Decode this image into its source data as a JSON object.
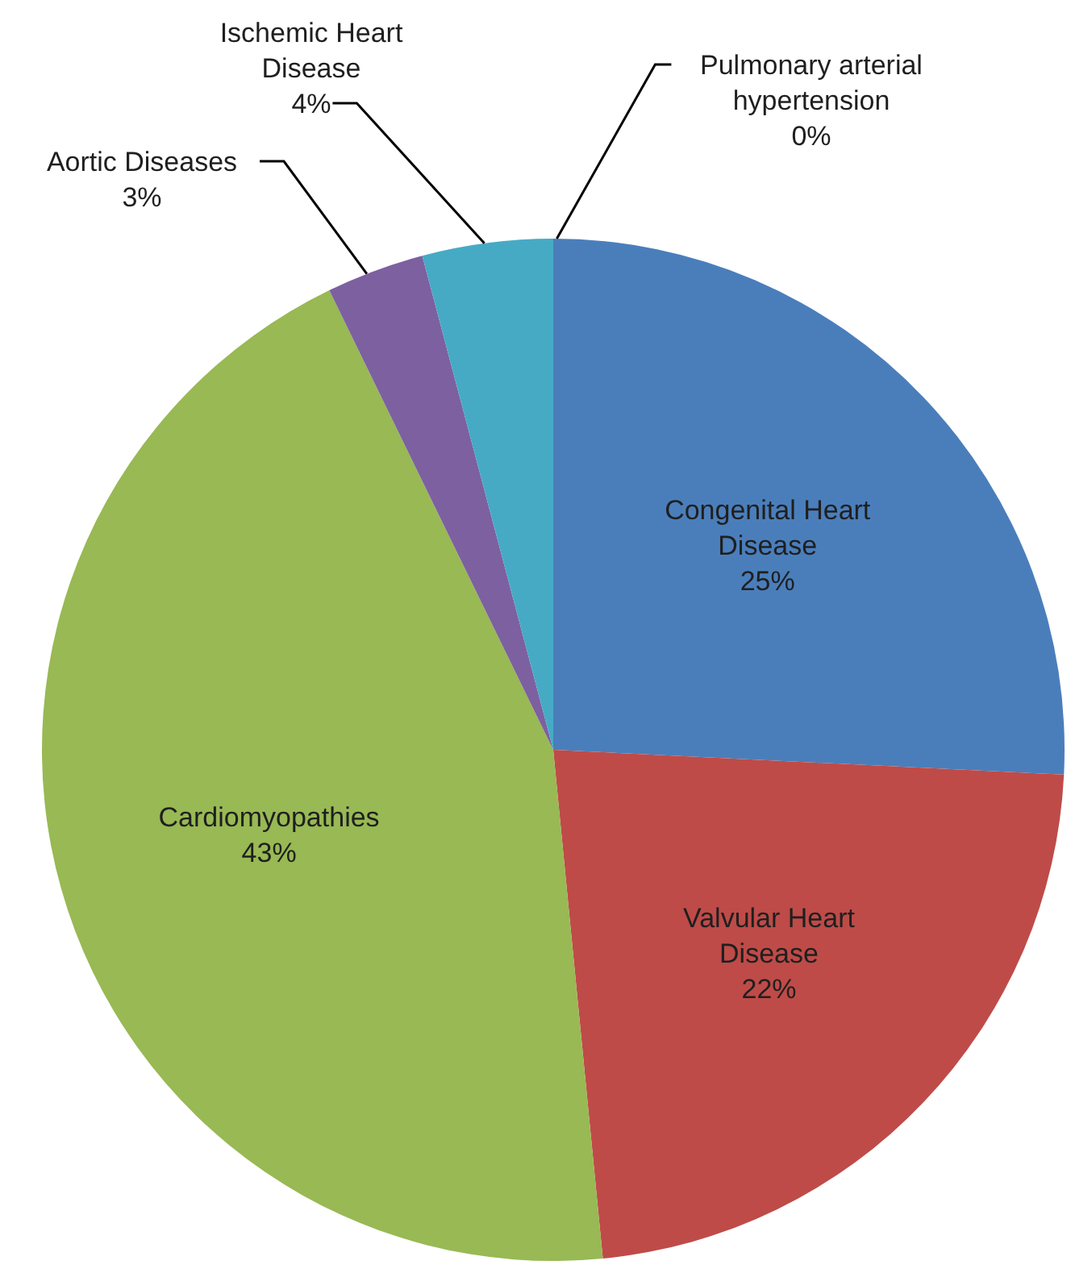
{
  "chart_data": {
    "type": "pie",
    "categories": [
      "Congenital Heart Disease",
      "Valvular Heart Disease",
      "Cardiomyopathies",
      "Aortic Diseases",
      "Ischemic Heart Disease",
      "Pulmonary arterial hypertension"
    ],
    "values": [
      25,
      22,
      43,
      3,
      4,
      0
    ],
    "colors": [
      "#4a7ebb",
      "#be4b48",
      "#98b954",
      "#7d60a0",
      "#46aac5",
      "#f79646"
    ],
    "value_labels": [
      "25%",
      "22%",
      "43%",
      "3%",
      "4%",
      "0%"
    ]
  }
}
